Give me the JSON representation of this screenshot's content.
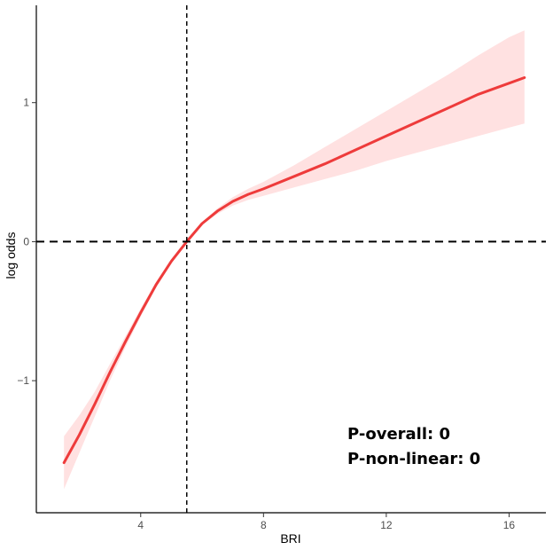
{
  "chart_data": {
    "type": "line",
    "xlabel": "BRI",
    "ylabel": "log odds",
    "xlim": [
      0.6,
      17.2
    ],
    "ylim": [
      -1.95,
      1.7
    ],
    "x_ticks": [
      4,
      8,
      12,
      16
    ],
    "x_tick_labels": [
      "4",
      "8",
      "12",
      "16"
    ],
    "y_ticks": [
      -1,
      0,
      1
    ],
    "y_tick_labels": [
      "−1",
      "0",
      "1"
    ],
    "reference_lines": {
      "x": 5.5,
      "y": 0
    },
    "grid": false,
    "legend": "none",
    "series": [
      {
        "x": [
          1.5,
          2.0,
          2.5,
          3.0,
          3.5,
          4.0,
          4.5,
          5.0,
          5.5,
          6.0,
          6.5,
          7.0,
          7.5,
          8.0,
          9.0,
          10.0,
          11.0,
          12.0,
          13.0,
          14.0,
          15.0,
          16.0,
          16.5
        ],
        "y": [
          -1.59,
          -1.39,
          -1.17,
          -0.94,
          -0.72,
          -0.51,
          -0.31,
          -0.14,
          0.0,
          0.13,
          0.22,
          0.29,
          0.34,
          0.38,
          0.47,
          0.56,
          0.66,
          0.76,
          0.86,
          0.96,
          1.06,
          1.14,
          1.18
        ],
        "lower": [
          -1.78,
          -1.52,
          -1.26,
          -1.0,
          -0.76,
          -0.54,
          -0.33,
          -0.15,
          -0.01,
          0.12,
          0.2,
          0.26,
          0.3,
          0.33,
          0.39,
          0.45,
          0.51,
          0.58,
          0.64,
          0.7,
          0.76,
          0.82,
          0.85
        ],
        "upper": [
          -1.4,
          -1.25,
          -1.08,
          -0.88,
          -0.68,
          -0.48,
          -0.29,
          -0.13,
          0.01,
          0.14,
          0.24,
          0.32,
          0.38,
          0.43,
          0.55,
          0.68,
          0.81,
          0.94,
          1.07,
          1.2,
          1.34,
          1.47,
          1.52
        ]
      }
    ],
    "annotations": [
      "P-overall: 0",
      "P-non-linear: 0"
    ],
    "colors": {
      "line": "#ee3b3b",
      "band": "#ffe1e1",
      "axis": "#000000",
      "reference": "#000000"
    }
  }
}
